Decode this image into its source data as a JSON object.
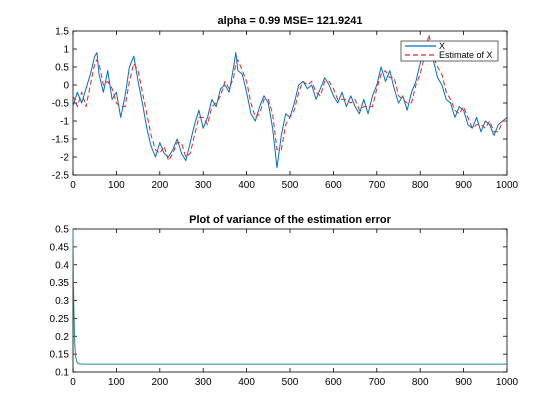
{
  "chart_data": [
    {
      "type": "line",
      "title": "alpha = 0.99   MSE= 121.9241",
      "xlabel": "",
      "ylabel": "",
      "xlim": [
        0,
        1000
      ],
      "ylim": [
        -2.5,
        1.5
      ],
      "xticks": [
        "0",
        "100",
        "200",
        "300",
        "400",
        "500",
        "600",
        "700",
        "800",
        "900",
        "1000"
      ],
      "yticks": [
        "-2.5",
        "-2",
        "-1.5",
        "-1",
        "-0.5",
        "0",
        "0.5",
        "1",
        "1.5"
      ],
      "grid": false,
      "legend_position": "top-right",
      "series": [
        {
          "name": "X",
          "color": "#0072bd",
          "style": "solid",
          "x": [
            0,
            10,
            20,
            30,
            40,
            50,
            55,
            60,
            70,
            80,
            90,
            100,
            110,
            120,
            130,
            140,
            150,
            160,
            170,
            180,
            190,
            200,
            210,
            220,
            230,
            240,
            250,
            260,
            270,
            280,
            290,
            300,
            310,
            320,
            330,
            340,
            350,
            360,
            370,
            375,
            380,
            390,
            400,
            410,
            420,
            430,
            440,
            450,
            460,
            470,
            480,
            490,
            500,
            510,
            520,
            530,
            540,
            550,
            560,
            570,
            580,
            590,
            600,
            610,
            620,
            630,
            640,
            650,
            660,
            670,
            680,
            690,
            700,
            710,
            720,
            730,
            740,
            750,
            760,
            770,
            780,
            790,
            800,
            810,
            820,
            830,
            840,
            850,
            860,
            870,
            880,
            890,
            900,
            910,
            920,
            930,
            940,
            950,
            960,
            970,
            980,
            990,
            1000
          ],
          "y": [
            -0.6,
            -0.2,
            -0.5,
            -0.1,
            0.3,
            0.8,
            0.9,
            0.3,
            -0.2,
            0.4,
            -0.4,
            -0.2,
            -0.9,
            -0.3,
            0.5,
            0.8,
            0.1,
            -0.5,
            -1.2,
            -1.7,
            -2.0,
            -1.6,
            -1.9,
            -2.0,
            -1.8,
            -1.5,
            -1.9,
            -2.1,
            -1.6,
            -1.1,
            -0.7,
            -1.2,
            -0.9,
            -0.4,
            -0.6,
            -0.1,
            0.0,
            -0.2,
            0.5,
            0.9,
            0.4,
            0.3,
            -0.2,
            -0.8,
            -1.0,
            -0.6,
            -0.3,
            -0.5,
            -1.2,
            -2.3,
            -1.4,
            -0.8,
            -0.9,
            -0.5,
            0.0,
            0.1,
            -0.1,
            0.0,
            -0.4,
            -0.1,
            0.2,
            0.0,
            -0.3,
            -0.5,
            -0.2,
            -0.6,
            -0.3,
            -0.6,
            -0.8,
            -0.4,
            -0.8,
            -0.3,
            0.0,
            0.5,
            0.1,
            0.4,
            -0.1,
            -0.5,
            -0.3,
            -0.7,
            -0.2,
            0.1,
            0.6,
            1.0,
            0.8,
            0.7,
            0.2,
            0.0,
            -0.4,
            -0.5,
            -0.9,
            -0.6,
            -0.7,
            -1.1,
            -1.2,
            -0.9,
            -1.3,
            -1.0,
            -1.1,
            -1.4,
            -1.1,
            -1.0,
            -0.9
          ]
        },
        {
          "name": "Estimate of X",
          "color": "#d62728",
          "style": "dashed",
          "x": [
            0,
            10,
            20,
            30,
            40,
            50,
            55,
            60,
            70,
            80,
            90,
            100,
            110,
            120,
            130,
            140,
            150,
            160,
            170,
            180,
            190,
            200,
            210,
            220,
            230,
            240,
            250,
            260,
            270,
            280,
            290,
            300,
            310,
            320,
            330,
            340,
            350,
            360,
            370,
            375,
            380,
            390,
            400,
            410,
            420,
            430,
            440,
            450,
            460,
            470,
            480,
            490,
            500,
            510,
            520,
            530,
            540,
            550,
            560,
            570,
            580,
            590,
            600,
            610,
            620,
            630,
            640,
            650,
            660,
            670,
            680,
            690,
            700,
            710,
            720,
            730,
            740,
            750,
            760,
            770,
            780,
            790,
            800,
            810,
            820,
            830,
            840,
            850,
            860,
            870,
            880,
            890,
            900,
            910,
            920,
            930,
            940,
            950,
            960,
            970,
            980,
            990,
            1000
          ],
          "y": [
            -0.3,
            -0.6,
            -0.2,
            -0.6,
            0.0,
            0.6,
            0.7,
            0.6,
            0.0,
            0.1,
            -0.1,
            -0.5,
            -0.6,
            -0.6,
            0.1,
            0.6,
            0.4,
            -0.2,
            -0.8,
            -1.4,
            -1.8,
            -1.9,
            -1.7,
            -2.1,
            -1.9,
            -1.6,
            -1.6,
            -2.0,
            -1.9,
            -1.4,
            -0.9,
            -0.9,
            -1.1,
            -0.6,
            -0.5,
            -0.3,
            0.1,
            -0.1,
            0.2,
            0.6,
            0.7,
            0.4,
            0.1,
            -0.5,
            -0.9,
            -0.8,
            -0.4,
            -0.4,
            -0.8,
            -1.8,
            -1.8,
            -1.1,
            -0.9,
            -0.7,
            -0.2,
            0.1,
            0.0,
            0.1,
            -0.2,
            -0.3,
            0.1,
            0.1,
            -0.1,
            -0.4,
            -0.4,
            -0.4,
            -0.5,
            -0.4,
            -0.7,
            -0.6,
            -0.6,
            -0.6,
            -0.1,
            0.3,
            0.4,
            0.2,
            0.2,
            -0.3,
            -0.4,
            -0.5,
            -0.5,
            0.0,
            0.3,
            0.8,
            1.4,
            0.8,
            0.5,
            0.3,
            -0.2,
            -0.4,
            -0.7,
            -0.8,
            -0.6,
            -0.9,
            -1.2,
            -1.1,
            -1.1,
            -1.2,
            -1.0,
            -1.3,
            -1.3,
            -1.0,
            -1.0
          ]
        }
      ]
    },
    {
      "type": "line",
      "title": "Plot of variance of the estimation error",
      "xlabel": "",
      "ylabel": "",
      "xlim": [
        0,
        1000
      ],
      "ylim": [
        0.1,
        0.5
      ],
      "xticks": [
        "0",
        "100",
        "200",
        "300",
        "400",
        "500",
        "600",
        "700",
        "800",
        "900",
        "1000"
      ],
      "yticks": [
        "0.1",
        "0.15",
        "0.2",
        "0.25",
        "0.3",
        "0.35",
        "0.4",
        "0.45",
        "0.5"
      ],
      "grid": false,
      "series": [
        {
          "color": "#1f8a8a",
          "style": "solid",
          "x": [
            0,
            1,
            2,
            3,
            4,
            5,
            6,
            8,
            10,
            14,
            20,
            30,
            50,
            100,
            300,
            600,
            1000
          ],
          "y": [
            0.5,
            0.36,
            0.28,
            0.22,
            0.185,
            0.16,
            0.145,
            0.132,
            0.126,
            0.123,
            0.122,
            0.122,
            0.122,
            0.122,
            0.122,
            0.122,
            0.122
          ]
        }
      ]
    }
  ]
}
